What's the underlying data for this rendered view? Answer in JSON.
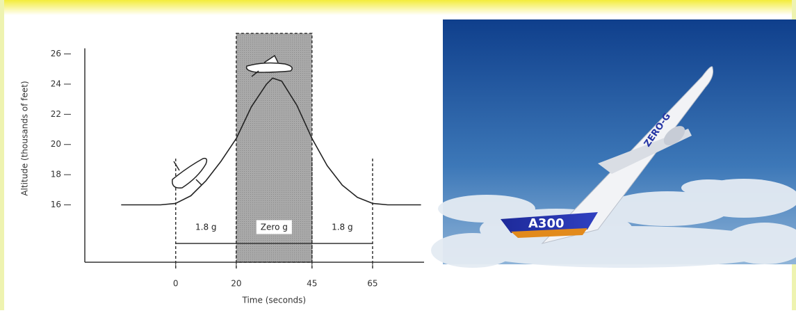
{
  "chart_data": {
    "type": "line",
    "xlabel": "Time (seconds)",
    "ylabel": "Altitude (thousands of feet)",
    "x": [
      -18,
      -5,
      0,
      5,
      10,
      15,
      20,
      25,
      30,
      32,
      35,
      40,
      45,
      50,
      55,
      60,
      65,
      70,
      81
    ],
    "values": [
      16,
      16,
      16.1,
      16.6,
      17.6,
      18.9,
      20.4,
      22.5,
      24.0,
      24.4,
      24.2,
      22.6,
      20.4,
      18.6,
      17.3,
      16.5,
      16.1,
      16,
      16
    ],
    "color": "#222222",
    "xlim": [
      -30,
      82
    ],
    "ylim": [
      12.2,
      27.5
    ],
    "xticks": [
      0,
      20,
      45,
      65
    ],
    "yticks": [
      16,
      18,
      20,
      22,
      24,
      26
    ],
    "phases": [
      {
        "label": "1.8 g",
        "start": 0,
        "end": 20
      },
      {
        "label": "Zero g",
        "start": 20,
        "end": 45,
        "shaded": true
      },
      {
        "label": "1.8 g",
        "start": 45,
        "end": 65
      }
    ]
  },
  "photo": {
    "labels": [
      "A300",
      "ZERO-G"
    ]
  }
}
